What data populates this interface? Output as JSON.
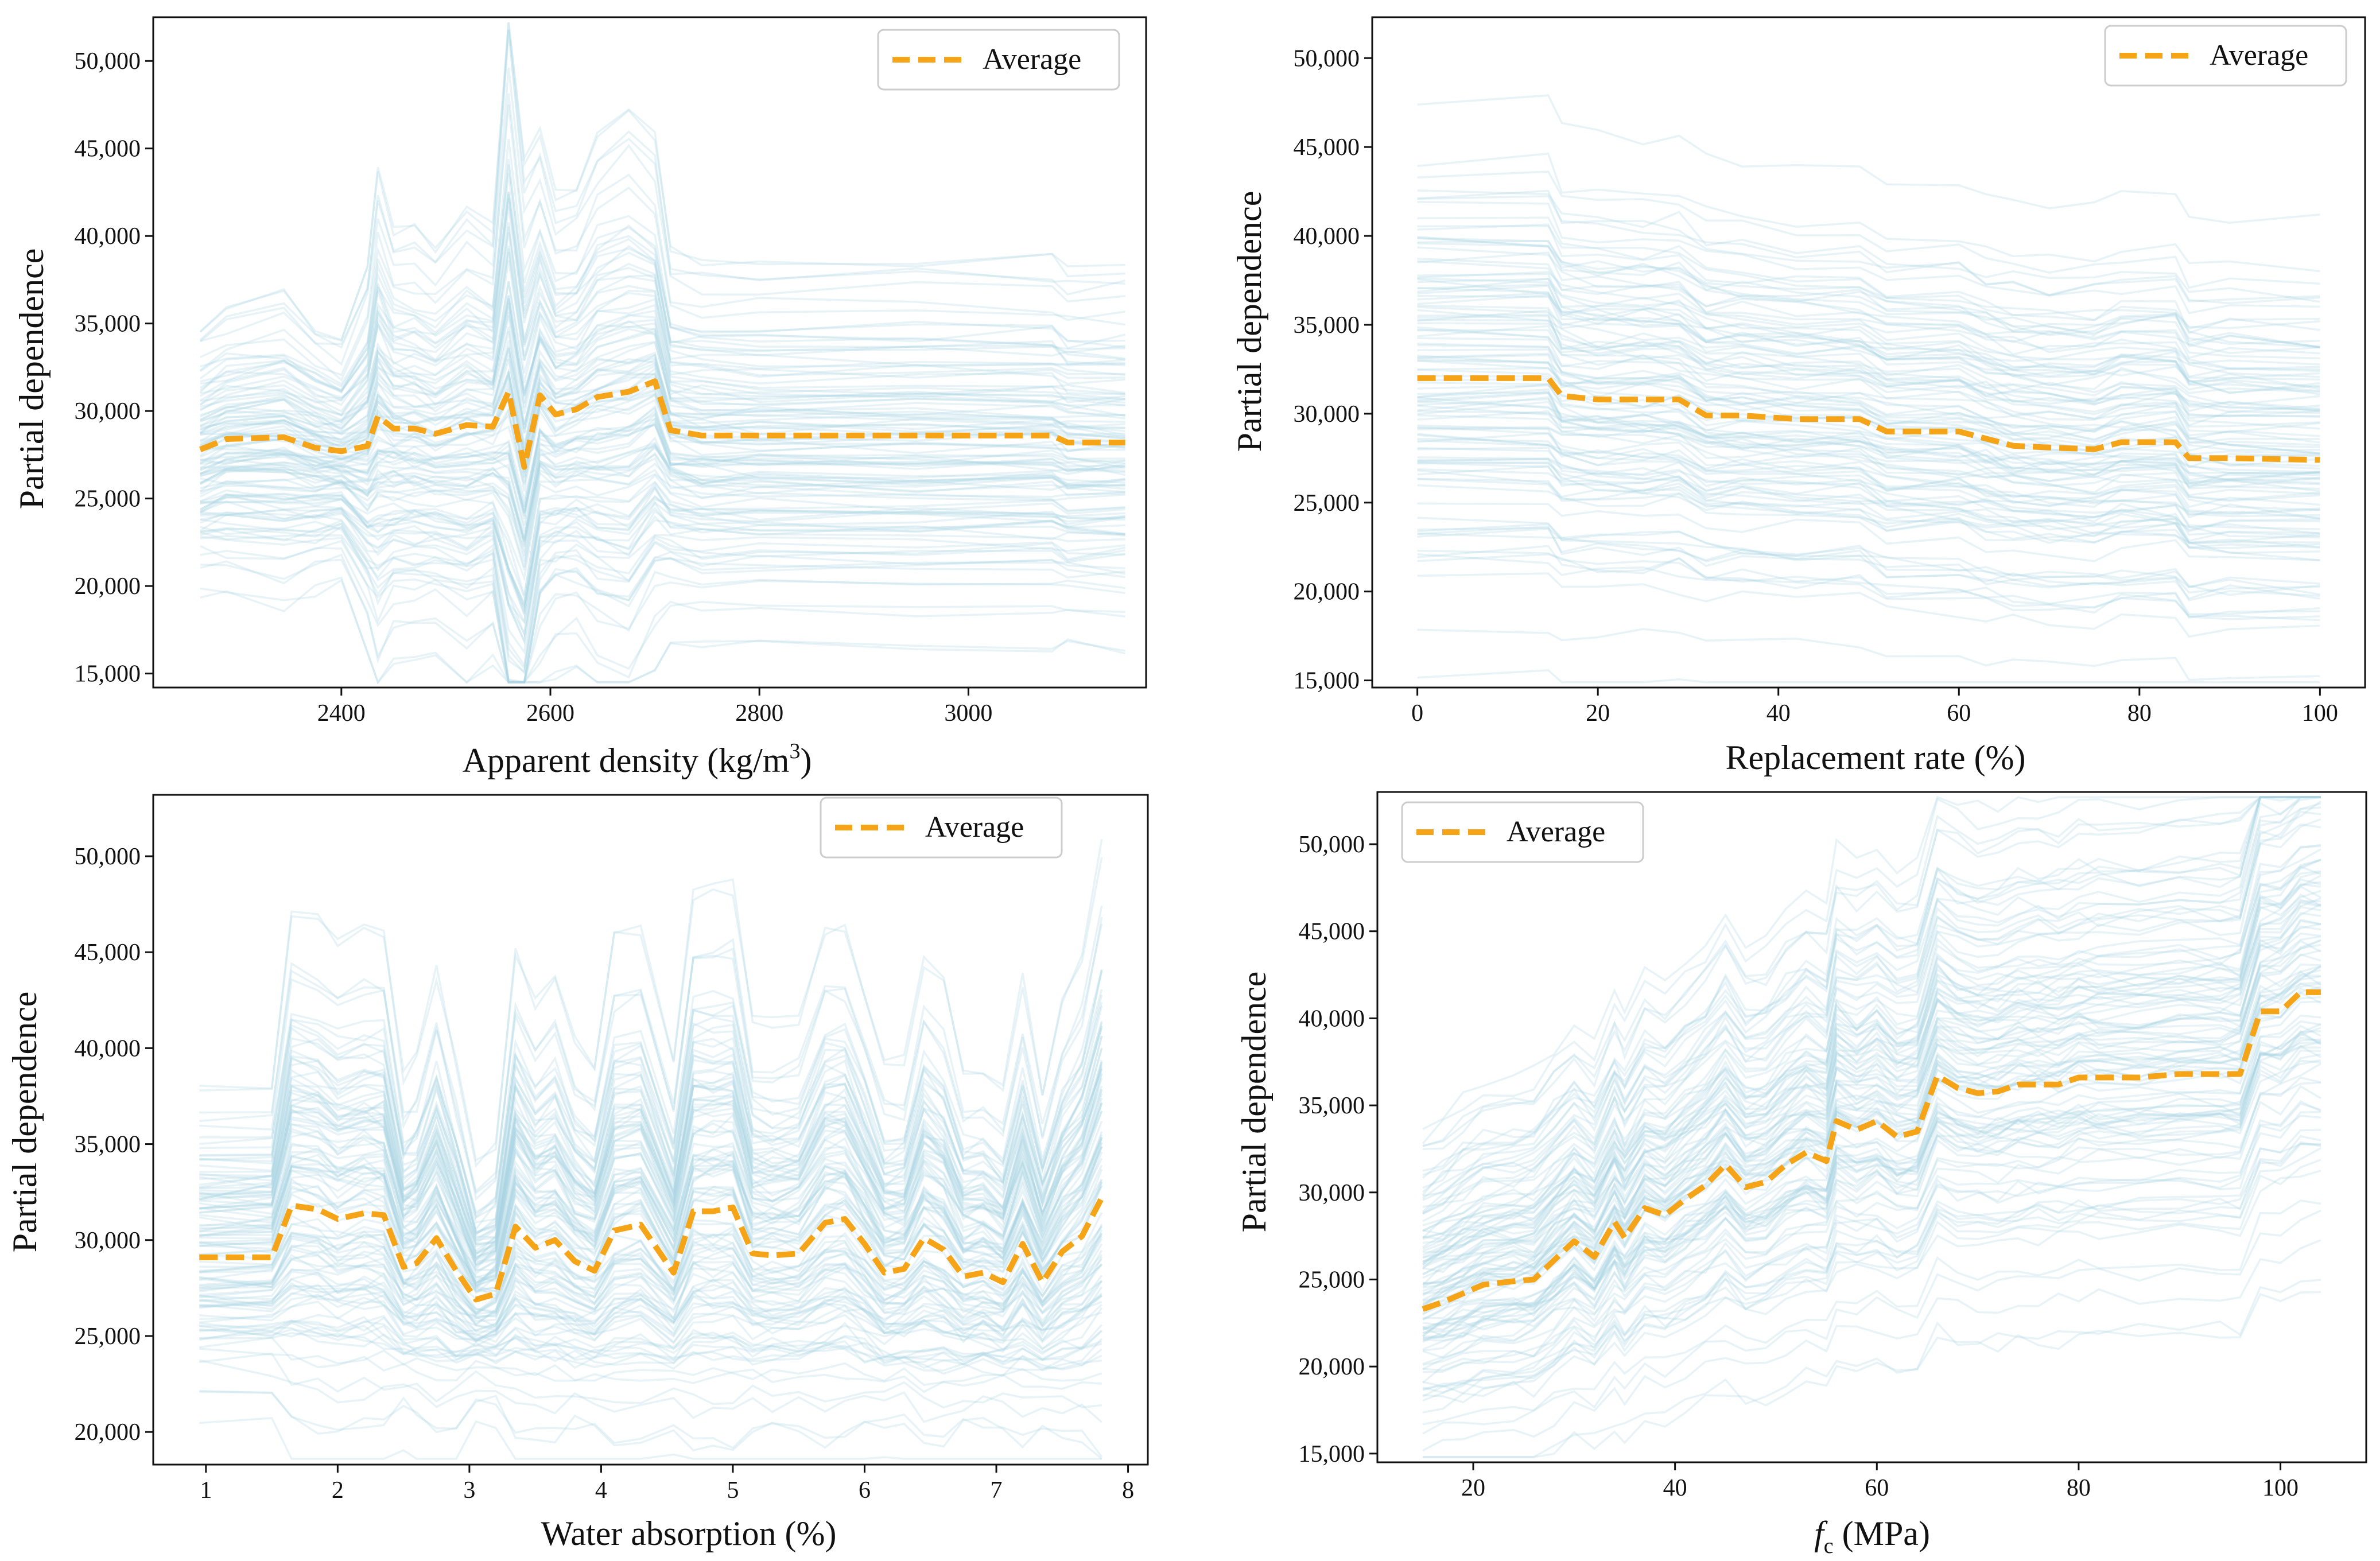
{
  "colors": {
    "average": "#f5a418",
    "ice": "#a9d3e2",
    "axis": "#111111",
    "legendBorder": "#cccccc"
  },
  "chart_data": [
    {
      "id": "a",
      "type": "line",
      "title": "",
      "xlabel": "Apparent density (kg/m",
      "xlabel_sup": "3",
      "xlabel_suffix": ")",
      "ylabel": "Partial dependence",
      "xlim": [
        2220,
        3170
      ],
      "ylim": [
        14200,
        52500
      ],
      "xticks": [
        2400,
        2600,
        2800,
        3000
      ],
      "xtick_labels": [
        "2400",
        "2600",
        "2800",
        "3000"
      ],
      "yticks": [
        15000,
        20000,
        25000,
        30000,
        35000,
        40000,
        45000,
        50000
      ],
      "ytick_labels": [
        "15,000",
        "20,000",
        "25,000",
        "30,000",
        "35,000",
        "40,000",
        "45,000",
        "50,000"
      ],
      "legend_position": "top-right",
      "legend_label": "Average",
      "series": [
        {
          "name": "Average",
          "x": [
            2265,
            2290,
            2345,
            2375,
            2400,
            2425,
            2435,
            2450,
            2470,
            2490,
            2520,
            2545,
            2560,
            2575,
            2590,
            2605,
            2625,
            2645,
            2675,
            2700,
            2715,
            2745,
            2800,
            2950,
            3080,
            3095,
            3150
          ],
          "y": [
            27800,
            28400,
            28500,
            27900,
            27700,
            28000,
            29700,
            29000,
            29000,
            28700,
            29200,
            29100,
            31100,
            26800,
            30900,
            29800,
            30100,
            30800,
            31100,
            31700,
            28900,
            28600,
            28600,
            28600,
            28600,
            28200,
            28200
          ]
        }
      ],
      "ice_profile": {
        "x": [
          2265,
          2290,
          2345,
          2375,
          2400,
          2425,
          2435,
          2450,
          2470,
          2490,
          2520,
          2545,
          2560,
          2575,
          2590,
          2605,
          2625,
          2645,
          2675,
          2700,
          2715,
          2745,
          2800,
          2950,
          3080,
          3095,
          3150
        ],
        "sens": [
          0.55,
          0.6,
          0.65,
          0.55,
          0.5,
          0.8,
          1.1,
          0.9,
          0.9,
          0.85,
          1.0,
          0.9,
          1.8,
          1.4,
          1.2,
          1.0,
          1.0,
          1.2,
          1.3,
          1.1,
          0.8,
          0.8,
          0.8,
          0.8,
          0.8,
          0.78,
          0.78
        ],
        "y_range": [
          19000,
          51000
        ]
      }
    },
    {
      "id": "b",
      "type": "line",
      "title": "",
      "xlabel": "Replacement rate (%)",
      "ylabel": "Partial dependence",
      "xlim": [
        -5,
        105
      ],
      "ylim": [
        14600,
        52300
      ],
      "xticks": [
        0,
        20,
        40,
        60,
        80,
        100
      ],
      "xtick_labels": [
        "0",
        "20",
        "40",
        "60",
        "80",
        "100"
      ],
      "yticks": [
        15000,
        20000,
        25000,
        30000,
        35000,
        40000,
        45000,
        50000
      ],
      "ytick_labels": [
        "15,000",
        "20,000",
        "25,000",
        "30,000",
        "35,000",
        "40,000",
        "45,000",
        "50,000"
      ],
      "legend_position": "top-right",
      "legend_label": "Average",
      "series": [
        {
          "name": "Average",
          "x": [
            0,
            14.5,
            16,
            20,
            25,
            29,
            32,
            36,
            42,
            49,
            52,
            60,
            63,
            66,
            70,
            75,
            78,
            84,
            85.5,
            90,
            100
          ],
          "y": [
            32000,
            32000,
            31000,
            30800,
            30800,
            30800,
            29900,
            29900,
            29700,
            29700,
            29000,
            29000,
            28600,
            28200,
            28100,
            28000,
            28400,
            28400,
            27500,
            27500,
            27400
          ]
        }
      ],
      "ice_profile": {
        "x": [
          0,
          14.5,
          16,
          20,
          25,
          29,
          32,
          36,
          42,
          49,
          52,
          60,
          63,
          66,
          70,
          75,
          78,
          84,
          85.5,
          90,
          100
        ],
        "sens": [
          1.0,
          1.0,
          0.96,
          0.95,
          0.95,
          0.95,
          0.92,
          0.92,
          0.91,
          0.91,
          0.9,
          0.9,
          0.89,
          0.88,
          0.88,
          0.88,
          0.89,
          0.89,
          0.87,
          0.87,
          0.87
        ],
        "y_range": [
          16000,
          50500
        ]
      }
    },
    {
      "id": "c",
      "type": "line",
      "title": "",
      "xlabel": "Water absorption (%)",
      "ylabel": "Partial dependence",
      "xlim": [
        0.6,
        8.15
      ],
      "ylim": [
        18300,
        53200
      ],
      "xticks": [
        1,
        2,
        3,
        4,
        5,
        6,
        7,
        8
      ],
      "xtick_labels": [
        "1",
        "2",
        "3",
        "4",
        "5",
        "6",
        "7",
        "8"
      ],
      "yticks": [
        20000,
        25000,
        30000,
        35000,
        40000,
        45000,
        50000
      ],
      "ytick_labels": [
        "20,000",
        "25,000",
        "30,000",
        "35,000",
        "40,000",
        "45,000",
        "50,000"
      ],
      "legend_position": "top-center",
      "legend_label": "Average",
      "series": [
        {
          "name": "Average",
          "x": [
            0.95,
            1.5,
            1.65,
            1.85,
            2.0,
            2.2,
            2.35,
            2.5,
            2.6,
            2.75,
            2.9,
            3.05,
            3.2,
            3.35,
            3.5,
            3.65,
            3.8,
            3.95,
            4.1,
            4.3,
            4.55,
            4.7,
            4.85,
            5.0,
            5.15,
            5.3,
            5.5,
            5.7,
            5.85,
            6.0,
            6.15,
            6.3,
            6.45,
            6.6,
            6.75,
            6.9,
            7.05,
            7.2,
            7.35,
            7.5,
            7.65,
            7.8
          ],
          "y": [
            29100,
            29100,
            31800,
            31600,
            31100,
            31400,
            31300,
            28600,
            28800,
            30100,
            28400,
            26900,
            27200,
            30700,
            29600,
            30000,
            28900,
            28400,
            30500,
            30800,
            28300,
            31500,
            31500,
            31700,
            29300,
            29200,
            29300,
            30900,
            31100,
            29800,
            28300,
            28500,
            30100,
            29500,
            28100,
            28300,
            27800,
            29800,
            27800,
            29400,
            30200,
            32200
          ]
        }
      ],
      "ice_profile": {
        "x": [
          0.95,
          1.5,
          1.65,
          1.85,
          2.0,
          2.2,
          2.35,
          2.5,
          2.6,
          2.75,
          2.9,
          3.05,
          3.2,
          3.35,
          3.5,
          3.65,
          3.8,
          3.95,
          4.1,
          4.3,
          4.55,
          4.7,
          4.85,
          5.0,
          5.15,
          5.3,
          5.5,
          5.7,
          5.85,
          6.0,
          6.15,
          6.3,
          6.45,
          6.6,
          6.75,
          6.9,
          7.05,
          7.2,
          7.35,
          7.5,
          7.65,
          7.8
        ],
        "sens": [
          0.6,
          0.6,
          1.0,
          1.0,
          0.95,
          0.97,
          0.97,
          0.65,
          0.7,
          0.9,
          0.7,
          0.45,
          0.5,
          0.95,
          0.85,
          0.9,
          0.75,
          0.7,
          1.0,
          1.0,
          0.7,
          1.1,
          1.1,
          1.1,
          0.8,
          0.8,
          0.8,
          1.0,
          1.0,
          0.85,
          0.7,
          0.7,
          0.95,
          0.9,
          0.7,
          0.7,
          0.65,
          0.9,
          0.65,
          0.85,
          0.95,
          1.2
        ],
        "y_range": [
          19500,
          52000
        ]
      }
    },
    {
      "id": "d",
      "type": "line",
      "title": "",
      "xlabel_italic": "f",
      "xlabel_sub": "c",
      "xlabel": " (MPa)",
      "ylabel": "Partial dependence",
      "xlim": [
        10.5,
        108.5
      ],
      "ylim": [
        14500,
        53000
      ],
      "xticks": [
        20,
        40,
        60,
        80,
        100
      ],
      "xtick_labels": [
        "20",
        "40",
        "60",
        "80",
        "100"
      ],
      "yticks": [
        15000,
        20000,
        25000,
        30000,
        35000,
        40000,
        45000,
        50000
      ],
      "ytick_labels": [
        "15,000",
        "20,000",
        "25,000",
        "30,000",
        "35,000",
        "40,000",
        "45,000",
        "50,000"
      ],
      "legend_position": "top-left",
      "legend_label": "Average",
      "series": [
        {
          "name": "Average",
          "x": [
            15,
            17,
            19,
            21,
            24,
            26,
            28,
            30,
            32,
            34,
            35,
            37,
            39,
            41,
            43,
            45,
            47,
            49,
            51,
            53,
            55,
            56,
            58,
            60,
            62,
            64,
            66,
            68,
            70,
            72,
            74,
            76,
            78,
            80,
            82,
            86,
            90,
            94,
            96,
            98,
            100,
            102,
            104
          ],
          "y": [
            23300,
            23700,
            24200,
            24700,
            24900,
            25000,
            26100,
            27200,
            26300,
            28300,
            27400,
            29100,
            28700,
            29600,
            30400,
            31600,
            30300,
            30600,
            31600,
            32300,
            31800,
            34100,
            33600,
            34100,
            33200,
            33500,
            36700,
            36000,
            35700,
            35800,
            36200,
            36200,
            36200,
            36600,
            36600,
            36600,
            36800,
            36800,
            36800,
            40400,
            40400,
            41500,
            41500
          ]
        }
      ],
      "ice_profile": {
        "x": [
          15,
          17,
          19,
          21,
          24,
          26,
          28,
          30,
          32,
          34,
          35,
          37,
          39,
          41,
          43,
          45,
          47,
          49,
          51,
          53,
          55,
          56,
          58,
          60,
          62,
          64,
          66,
          68,
          70,
          72,
          74,
          76,
          78,
          80,
          82,
          86,
          90,
          94,
          96,
          98,
          100,
          102,
          104
        ],
        "sens": [
          0.6,
          0.62,
          0.65,
          0.67,
          0.67,
          0.68,
          0.7,
          0.72,
          0.7,
          0.75,
          0.73,
          0.77,
          0.76,
          0.78,
          0.8,
          0.83,
          0.8,
          0.8,
          0.83,
          0.85,
          0.84,
          0.9,
          0.88,
          0.9,
          0.88,
          0.88,
          0.97,
          0.95,
          0.94,
          0.94,
          0.95,
          0.95,
          0.95,
          0.96,
          0.96,
          0.96,
          0.97,
          0.97,
          0.97,
          1.07,
          1.07,
          1.1,
          1.1
        ],
        "y_range": [
          16000,
          52000
        ]
      }
    }
  ]
}
